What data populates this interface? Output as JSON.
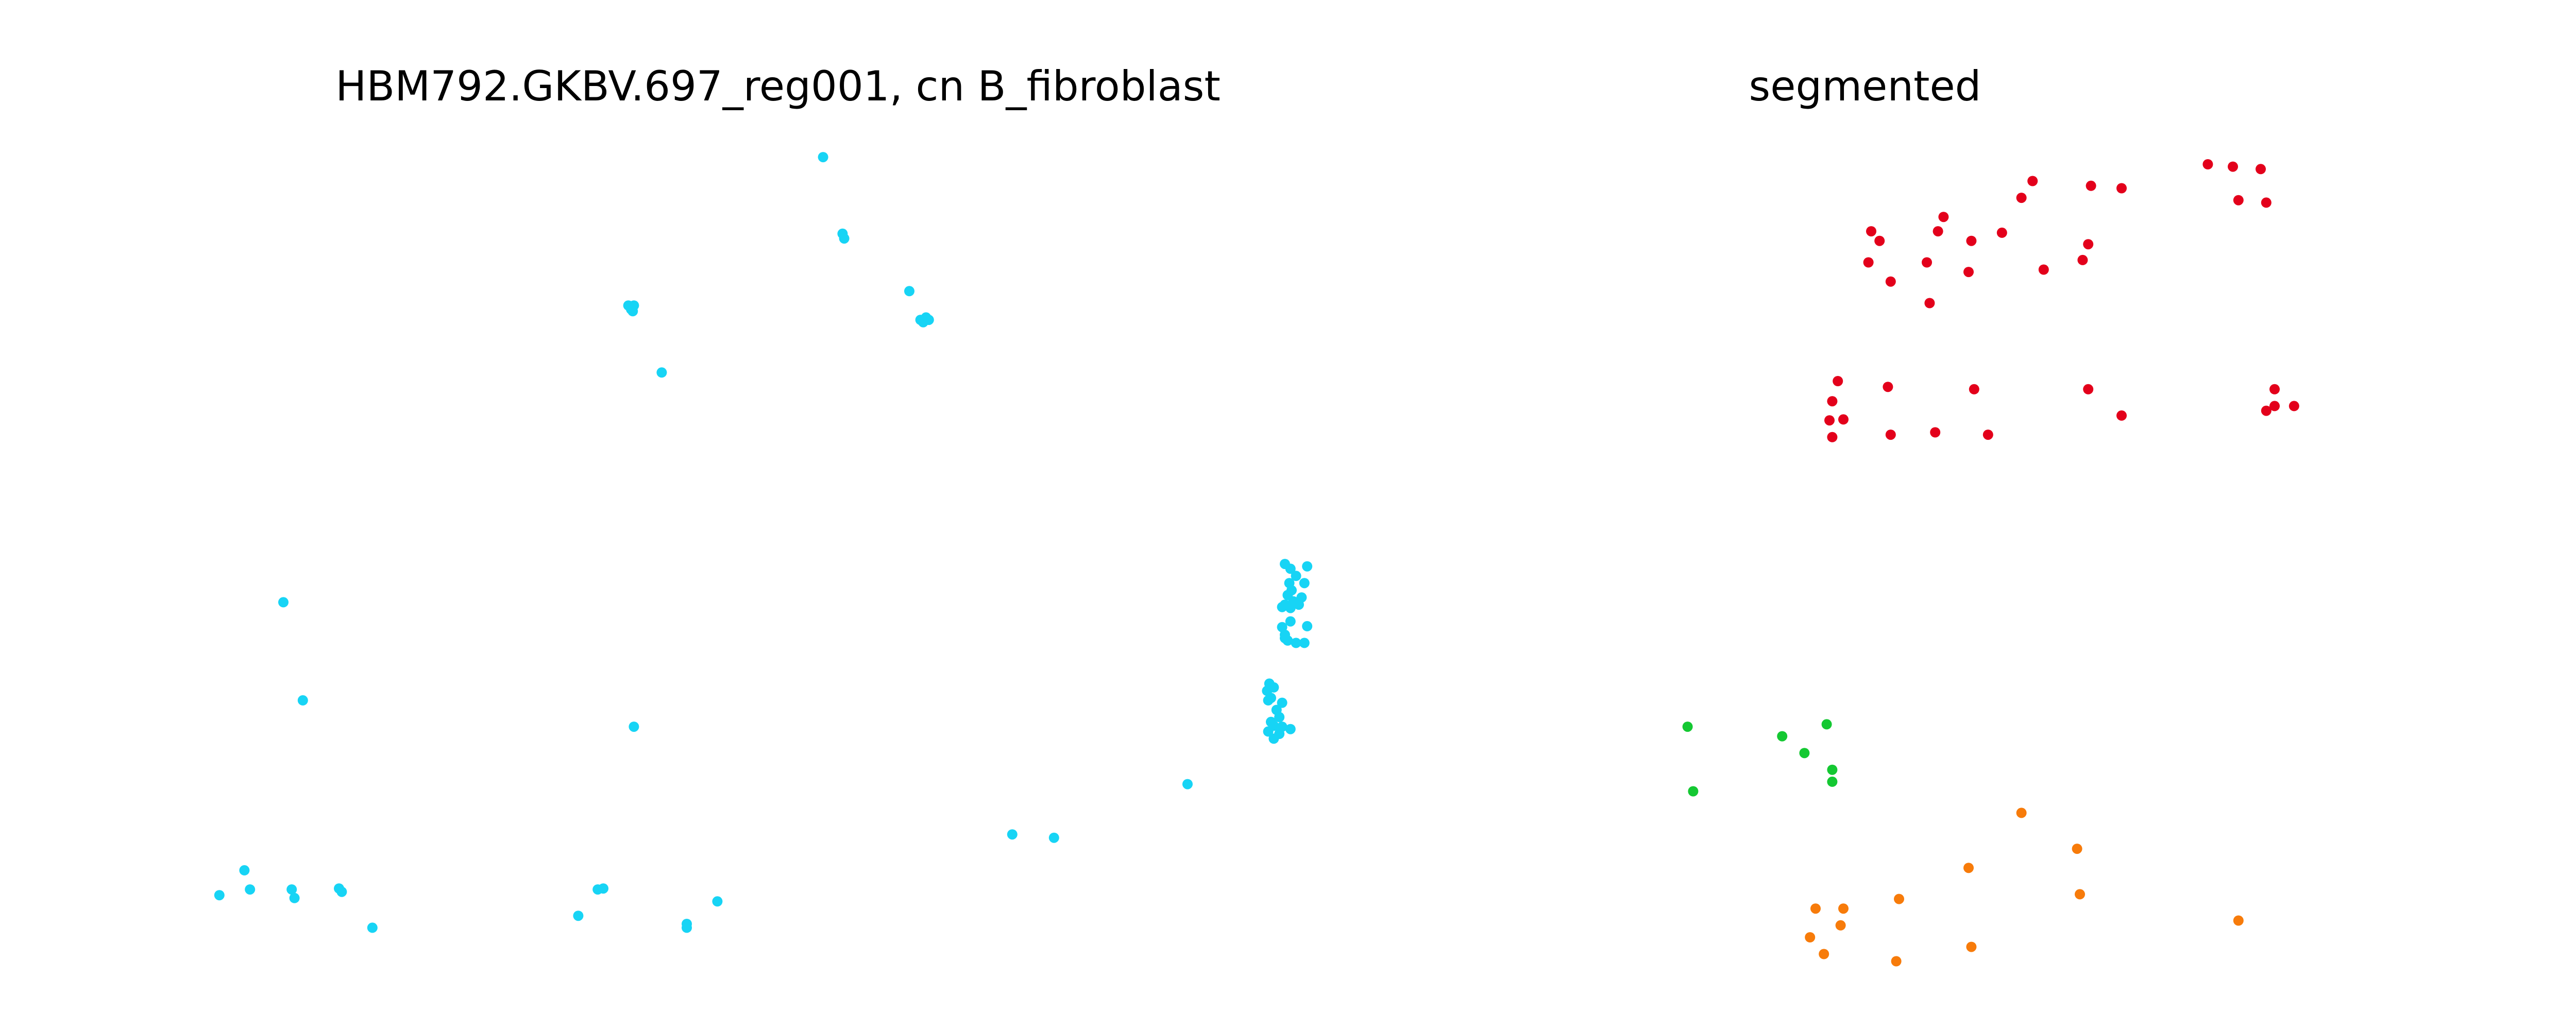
{
  "chart_data": [
    {
      "type": "scatter",
      "title": "HBM792.GKBV.697_reg001, cn B_fibroblast",
      "axes_visible": false,
      "grid": false,
      "xlim": [
        0,
        2000
      ],
      "ylim": [
        0,
        1700
      ],
      "y_inverted": true,
      "marker_color": "#17d4f5",
      "series": [
        {
          "points": [
            [
              1220,
              70
            ],
            [
              1255,
              230
            ],
            [
              1258,
              240
            ],
            [
              1375,
              350
            ],
            [
              1395,
              410
            ],
            [
              1405,
              405
            ],
            [
              1400,
              415
            ],
            [
              1410,
              410
            ],
            [
              870,
              380
            ],
            [
              875,
              385
            ],
            [
              880,
              380
            ],
            [
              878,
              392
            ],
            [
              875,
              388
            ],
            [
              930,
              520
            ],
            [
              250,
              1000
            ],
            [
              285,
              1205
            ],
            [
              880,
              1260
            ],
            [
              2050,
              920
            ],
            [
              2060,
              930
            ],
            [
              2070,
              945
            ],
            [
              2058,
              960
            ],
            [
              2062,
              975
            ],
            [
              2055,
              985
            ],
            [
              2065,
              998
            ],
            [
              2050,
              1005
            ],
            [
              2045,
              1010
            ],
            [
              2060,
              1012
            ],
            [
              2075,
              1005
            ],
            [
              2080,
              990
            ],
            [
              2085,
              960
            ],
            [
              2090,
              925
            ],
            [
              2060,
              1040
            ],
            [
              2045,
              1052
            ],
            [
              2050,
              1068
            ],
            [
              2055,
              1080
            ],
            [
              2050,
              1075
            ],
            [
              2070,
              1085
            ],
            [
              2090,
              1050
            ],
            [
              2085,
              1085
            ],
            [
              2022,
              1170
            ],
            [
              2030,
              1178
            ],
            [
              2018,
              1185
            ],
            [
              2025,
              1200
            ],
            [
              2020,
              1205
            ],
            [
              2045,
              1210
            ],
            [
              2035,
              1225
            ],
            [
              2040,
              1240
            ],
            [
              2025,
              1250
            ],
            [
              2030,
              1258
            ],
            [
              2045,
              1260
            ],
            [
              2060,
              1265
            ],
            [
              2040,
              1275
            ],
            [
              2030,
              1285
            ],
            [
              2020,
              1270
            ],
            [
              1875,
              1380
            ],
            [
              1560,
              1485
            ],
            [
              1635,
              1492
            ],
            [
              180,
              1560
            ],
            [
              135,
              1612
            ],
            [
              190,
              1600
            ],
            [
              265,
              1600
            ],
            [
              270,
              1618
            ],
            [
              350,
              1598
            ],
            [
              355,
              1605
            ],
            [
              410,
              1680
            ],
            [
              815,
              1600
            ],
            [
              825,
              1598
            ],
            [
              780,
              1655
            ],
            [
              975,
              1672
            ],
            [
              975,
              1680
            ],
            [
              1030,
              1625
            ]
          ]
        }
      ]
    },
    {
      "type": "scatter",
      "title": "segmented",
      "axes_visible": false,
      "grid": false,
      "xlim": [
        0,
        2000
      ],
      "ylim": [
        0,
        1700
      ],
      "y_inverted": true,
      "series": [
        {
          "color": "#e3001b",
          "points": [
            [
              1755,
              85
            ],
            [
              1800,
              90
            ],
            [
              1850,
              95
            ],
            [
              1860,
              165
            ],
            [
              1810,
              160
            ],
            [
              1440,
              120
            ],
            [
              1545,
              130
            ],
            [
              1600,
              135
            ],
            [
              1420,
              155
            ],
            [
              1280,
              195
            ],
            [
              1150,
              225
            ],
            [
              1270,
              225
            ],
            [
              1385,
              228
            ],
            [
              1330,
              245
            ],
            [
              1165,
              245
            ],
            [
              1540,
              252
            ],
            [
              1145,
              290
            ],
            [
              1250,
              290
            ],
            [
              1460,
              305
            ],
            [
              1325,
              310
            ],
            [
              1530,
              285
            ],
            [
              1185,
              330
            ],
            [
              1255,
              375
            ],
            [
              1090,
              538
            ],
            [
              1180,
              550
            ],
            [
              1335,
              555
            ],
            [
              1540,
              555
            ],
            [
              1875,
              555
            ],
            [
              1910,
              590
            ],
            [
              1875,
              590
            ],
            [
              1860,
              600
            ],
            [
              1600,
              610
            ],
            [
              1080,
              580
            ],
            [
              1100,
              618
            ],
            [
              1185,
              650
            ],
            [
              1265,
              645
            ],
            [
              1360,
              650
            ],
            [
              1075,
              620
            ],
            [
              1080,
              655
            ]
          ]
        },
        {
          "color": "#14c832",
          "points": [
            [
              820,
              1260
            ],
            [
              990,
              1280
            ],
            [
              1030,
              1315
            ],
            [
              1070,
              1255
            ],
            [
              1080,
              1350
            ],
            [
              1080,
              1375
            ],
            [
              830,
              1395
            ]
          ]
        },
        {
          "color": "#f77b0a",
          "points": [
            [
              1420,
              1440
            ],
            [
              1520,
              1515
            ],
            [
              1325,
              1555
            ],
            [
              1200,
              1620
            ],
            [
              1050,
              1640
            ],
            [
              1100,
              1640
            ],
            [
              1095,
              1675
            ],
            [
              1040,
              1700
            ],
            [
              1525,
              1610
            ],
            [
              1810,
              1665
            ],
            [
              1330,
              1720
            ],
            [
              1195,
              1750
            ],
            [
              1065,
              1735
            ]
          ]
        }
      ]
    }
  ]
}
